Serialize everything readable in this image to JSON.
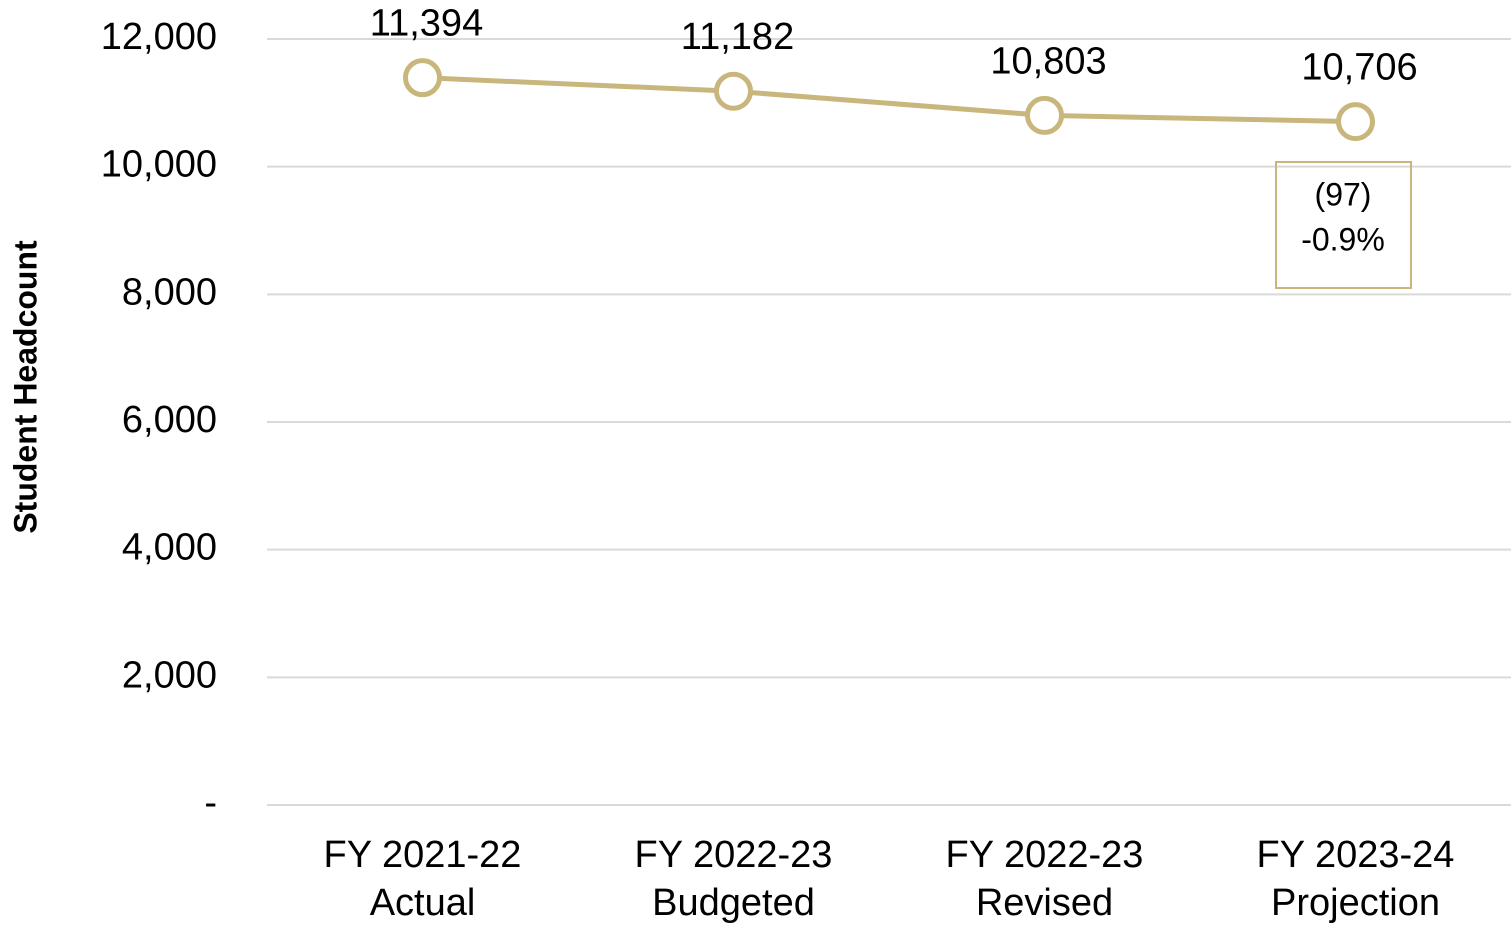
{
  "chart_data": {
    "type": "line",
    "y_axis_label": "Student Headcount",
    "categories": [
      [
        "FY 2021-22",
        "Actual"
      ],
      [
        "FY 2022-23",
        "Budgeted"
      ],
      [
        "FY 2022-23",
        "Revised"
      ],
      [
        "FY 2023-24",
        "Projection"
      ]
    ],
    "series": [
      {
        "name": "Student Headcount",
        "color": "#c9b67c",
        "values": [
          11394,
          11182,
          10803,
          10706
        ],
        "value_labels": [
          "11,394",
          "11,182",
          "10,803",
          "10,706"
        ]
      }
    ],
    "ylim": [
      0,
      12000
    ],
    "yticks": [
      {
        "value": 0,
        "label": "-"
      },
      {
        "value": 2000,
        "label": "2,000"
      },
      {
        "value": 4000,
        "label": "4,000"
      },
      {
        "value": 6000,
        "label": "6,000"
      },
      {
        "value": 8000,
        "label": "8,000"
      },
      {
        "value": 10000,
        "label": "10,000"
      },
      {
        "value": 12000,
        "label": "12,000"
      }
    ],
    "grid": true,
    "annotation": {
      "lines": [
        "(97)",
        "-0.9%"
      ]
    }
  }
}
